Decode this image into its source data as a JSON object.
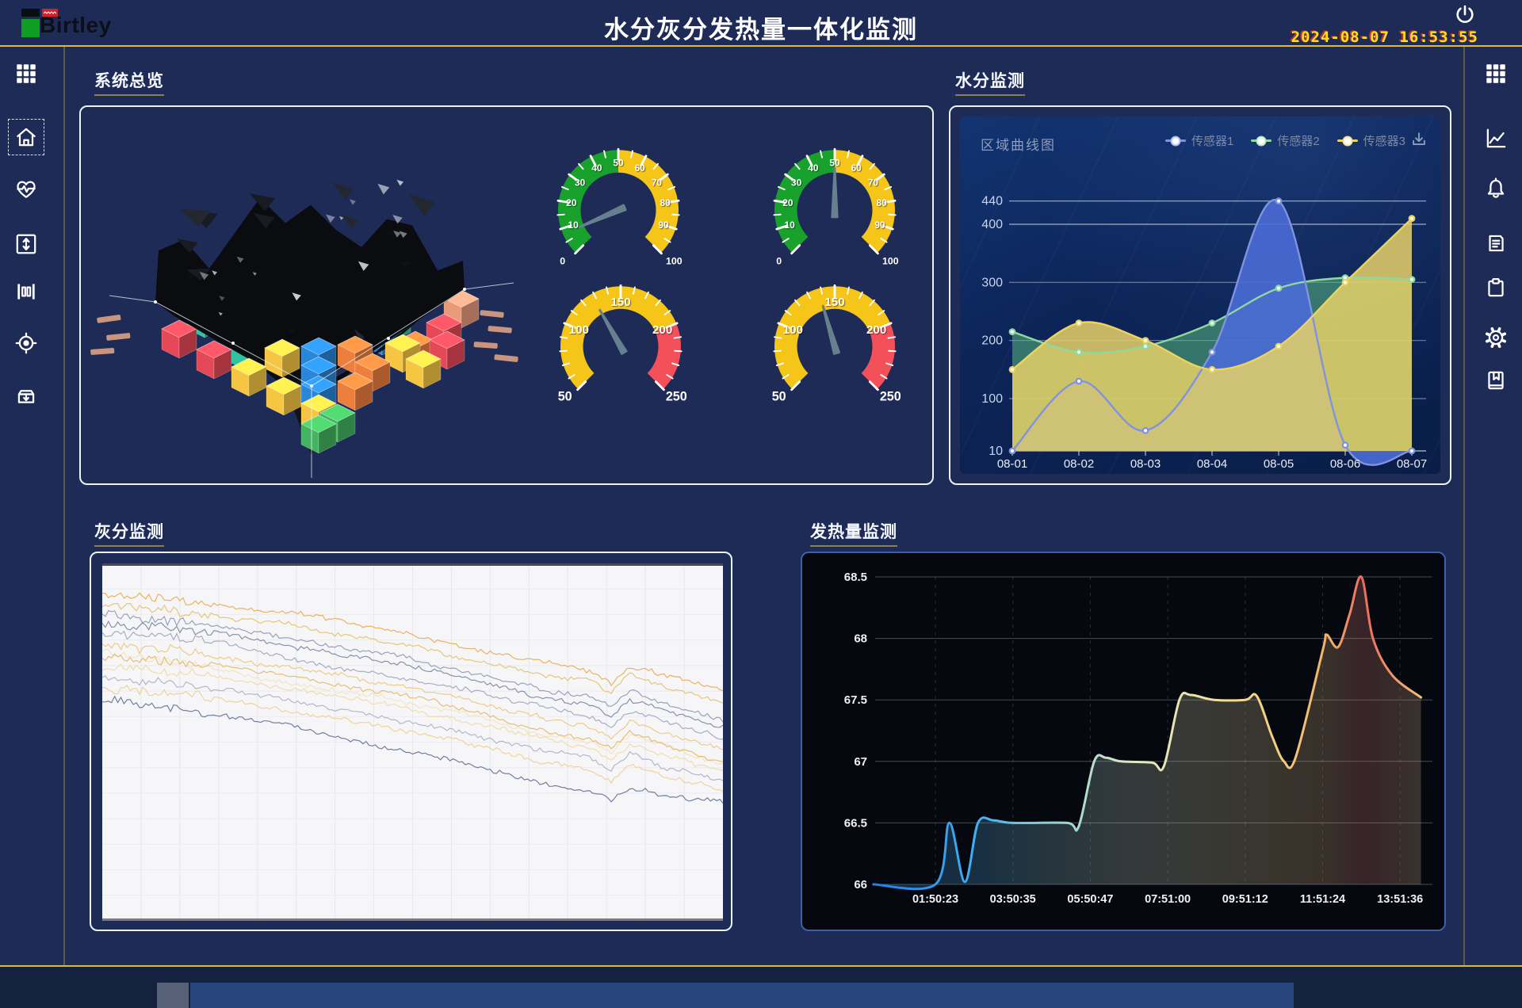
{
  "header": {
    "brand": "Birtley",
    "title": "水分灰分发热量一体化监测",
    "date": "2024-08-07",
    "time": "16:53:55",
    "power_icon": "power-icon"
  },
  "left_sidebar": {
    "items": [
      {
        "icon": "grid-icon"
      },
      {
        "icon": "home-icon",
        "selected": true
      },
      {
        "icon": "heart-pulse-icon"
      },
      {
        "icon": "expand-vertical-icon"
      },
      {
        "icon": "ruler-icon"
      },
      {
        "icon": "locate-icon"
      },
      {
        "icon": "archive-down-icon"
      }
    ]
  },
  "right_sidebar": {
    "items": [
      {
        "icon": "grid-icon"
      },
      {
        "icon": "line-chart-icon"
      },
      {
        "icon": "bell-icon"
      },
      {
        "icon": "document-icon"
      },
      {
        "icon": "clipboard-icon"
      },
      {
        "icon": "gear-icon"
      },
      {
        "icon": "book-icon"
      }
    ]
  },
  "panels": {
    "overview": {
      "title": "系统总览"
    },
    "moisture": {
      "title": "水分监测"
    },
    "ash": {
      "title": "灰分监测"
    },
    "calorific": {
      "title": "发热量监测"
    }
  },
  "colors": {
    "accent_line": "#dcb93a",
    "gauge_green": "#18a22c",
    "gauge_yellow": "#f5c517",
    "gauge_red": "#f4505a",
    "needle": "#66808f",
    "sensor1": "#8093e0",
    "sensor2": "#8fd8a0",
    "sensor3": "#ecd35e"
  },
  "gauges": [
    {
      "name": "gauge-1",
      "min": 0,
      "max": 100,
      "value": 8,
      "labels": [
        0,
        10,
        20,
        30,
        40,
        50,
        60,
        70,
        80,
        90,
        100
      ],
      "segments": [
        {
          "from": 0,
          "to": 50,
          "color": "#18a22c"
        },
        {
          "from": 50,
          "to": 100,
          "color": "#f5c517"
        }
      ]
    },
    {
      "name": "gauge-2",
      "min": 0,
      "max": 100,
      "value": 50,
      "labels": [
        0,
        10,
        20,
        30,
        40,
        50,
        60,
        70,
        80,
        90,
        100
      ],
      "segments": [
        {
          "from": 0,
          "to": 50,
          "color": "#18a22c"
        },
        {
          "from": 50,
          "to": 100,
          "color": "#f5c517"
        }
      ]
    },
    {
      "name": "gauge-3",
      "min": 50,
      "max": 250,
      "value": 128,
      "labels": [
        50,
        100,
        150,
        200,
        250
      ],
      "segments": [
        {
          "from": 50,
          "to": 200,
          "color": "#f5c517"
        },
        {
          "from": 200,
          "to": 250,
          "color": "#f4505a"
        }
      ]
    },
    {
      "name": "gauge-4",
      "min": 50,
      "max": 250,
      "value": 138,
      "labels": [
        50,
        100,
        150,
        200,
        250
      ],
      "segments": [
        {
          "from": 50,
          "to": 200,
          "color": "#f5c517"
        },
        {
          "from": 200,
          "to": 250,
          "color": "#f4505a"
        }
      ]
    }
  ],
  "chart_data": [
    {
      "id": "moisture",
      "type": "area",
      "title": "区域曲线图",
      "legend_position": "top-right",
      "x": [
        "08-01",
        "08-02",
        "08-03",
        "08-04",
        "08-05",
        "08-06",
        "08-07"
      ],
      "ylim": [
        10,
        460
      ],
      "yticks": [
        10,
        100,
        200,
        300,
        400,
        440
      ],
      "grid": true,
      "series": [
        {
          "name": "传感器1",
          "color": "#8093e0",
          "fill": "#4a6bd6",
          "fill_opacity": 0.9,
          "values": [
            10,
            130,
            45,
            180,
            440,
            20,
            10
          ]
        },
        {
          "name": "传感器2",
          "color": "#8fd8a0",
          "fill": "#57b87c",
          "fill_opacity": 0.55,
          "values": [
            215,
            180,
            190,
            230,
            290,
            308,
            305
          ]
        },
        {
          "name": "传感器3",
          "color": "#ecd35e",
          "fill": "#e6d169",
          "fill_opacity": 0.85,
          "values": [
            150,
            230,
            200,
            150,
            190,
            300,
            410
          ]
        }
      ],
      "download_icon": "download-icon"
    },
    {
      "id": "ash",
      "type": "line-multi",
      "title": "",
      "background": "#f6f6f8",
      "grid": true,
      "x_percent": [
        0,
        10,
        20,
        30,
        40,
        50,
        55,
        58,
        65,
        72,
        79,
        82,
        85,
        90,
        100
      ],
      "series": [
        {
          "color": "#e8a94e",
          "values": [
            9,
            10,
            12,
            14,
            17,
            20,
            22,
            23,
            26,
            28,
            30,
            33,
            28,
            31,
            35
          ]
        },
        {
          "color": "#e2c06a",
          "values": [
            12,
            13,
            15,
            17,
            20,
            23,
            25,
            26,
            29,
            31,
            33,
            36,
            31,
            34,
            39
          ]
        },
        {
          "color": "#8b96b4",
          "values": [
            14,
            16,
            18,
            21,
            24,
            27,
            29,
            30,
            33,
            36,
            38,
            41,
            36,
            39,
            44
          ]
        },
        {
          "color": "#76839f",
          "values": [
            17,
            18,
            20,
            23,
            26,
            29,
            31,
            32,
            35,
            38,
            40,
            43,
            38,
            41,
            46
          ]
        },
        {
          "color": "#9aa4bd",
          "values": [
            20,
            21,
            23,
            26,
            29,
            32,
            34,
            35,
            38,
            41,
            43,
            46,
            41,
            44,
            49
          ]
        },
        {
          "color": "#ecc678",
          "values": [
            23,
            24,
            26,
            29,
            32,
            35,
            37,
            38,
            41,
            44,
            46,
            49,
            44,
            47,
            52
          ]
        },
        {
          "color": "#f3e2b8",
          "values": [
            25,
            27,
            30,
            33,
            36,
            39,
            41,
            42,
            45,
            48,
            50,
            53,
            48,
            51,
            56
          ]
        },
        {
          "color": "#e5b85c",
          "values": [
            26,
            27,
            29,
            32,
            35,
            38,
            40,
            41,
            44,
            47,
            49,
            52,
            47,
            50,
            55
          ]
        },
        {
          "color": "#f0d9a2",
          "values": [
            29,
            30,
            32,
            35,
            38,
            41,
            43,
            44,
            47,
            50,
            52,
            55,
            50,
            53,
            58
          ]
        },
        {
          "color": "#a8b1c6",
          "values": [
            32,
            33,
            35,
            38,
            41,
            44,
            46,
            47,
            50,
            53,
            55,
            58,
            53,
            56,
            61
          ]
        },
        {
          "color": "#edcf8c",
          "values": [
            35,
            36,
            38,
            41,
            44,
            47,
            49,
            50,
            53,
            56,
            58,
            61,
            56,
            59,
            63
          ]
        },
        {
          "color": "#5f6d8f",
          "values": [
            38,
            40,
            43,
            46,
            50,
            53,
            55,
            56,
            59,
            62,
            64,
            66,
            62,
            64,
            67
          ]
        }
      ]
    },
    {
      "id": "calorific",
      "type": "line",
      "ylim": [
        66,
        68.5
      ],
      "yticks": [
        66,
        66.5,
        67,
        67.5,
        68,
        68.5
      ],
      "xticks": [
        "01:50:23",
        "03:50:35",
        "05:50:47",
        "07:51:00",
        "09:51:12",
        "11:51:24",
        "13:51:36"
      ],
      "points": [
        [
          -0.8,
          66
        ],
        [
          0,
          66
        ],
        [
          0.18,
          66.5
        ],
        [
          0.38,
          66.02
        ],
        [
          0.55,
          66.5
        ],
        [
          0.75,
          66.52
        ],
        [
          1.0,
          66.5
        ],
        [
          1.7,
          66.5
        ],
        [
          1.85,
          66.47
        ],
        [
          2.05,
          67.0
        ],
        [
          2.2,
          67.03
        ],
        [
          2.4,
          67.0
        ],
        [
          2.8,
          66.99
        ],
        [
          2.95,
          66.96
        ],
        [
          3.15,
          67.5
        ],
        [
          3.3,
          67.54
        ],
        [
          3.6,
          67.5
        ],
        [
          4.0,
          67.5
        ],
        [
          4.15,
          67.53
        ],
        [
          4.35,
          67.2
        ],
        [
          4.5,
          67.0
        ],
        [
          4.65,
          67.03
        ],
        [
          5.0,
          67.9
        ],
        [
          5.05,
          68.03
        ],
        [
          5.2,
          67.93
        ],
        [
          5.35,
          68.2
        ],
        [
          5.5,
          68.5
        ],
        [
          5.65,
          68.0
        ],
        [
          5.9,
          67.7
        ],
        [
          6.27,
          67.52
        ]
      ],
      "line_gradient": [
        [
          0,
          "#1f7fe8"
        ],
        [
          0.18,
          "#3fb0f2"
        ],
        [
          0.32,
          "#8fd4cf"
        ],
        [
          0.45,
          "#d9e8c9"
        ],
        [
          0.58,
          "#efe3a4"
        ],
        [
          0.72,
          "#f3cf7c"
        ],
        [
          0.82,
          "#f2b068"
        ],
        [
          0.875,
          "#ee6a5e"
        ],
        [
          0.92,
          "#ef8f67"
        ],
        [
          1,
          "#f2d37f"
        ]
      ]
    }
  ]
}
